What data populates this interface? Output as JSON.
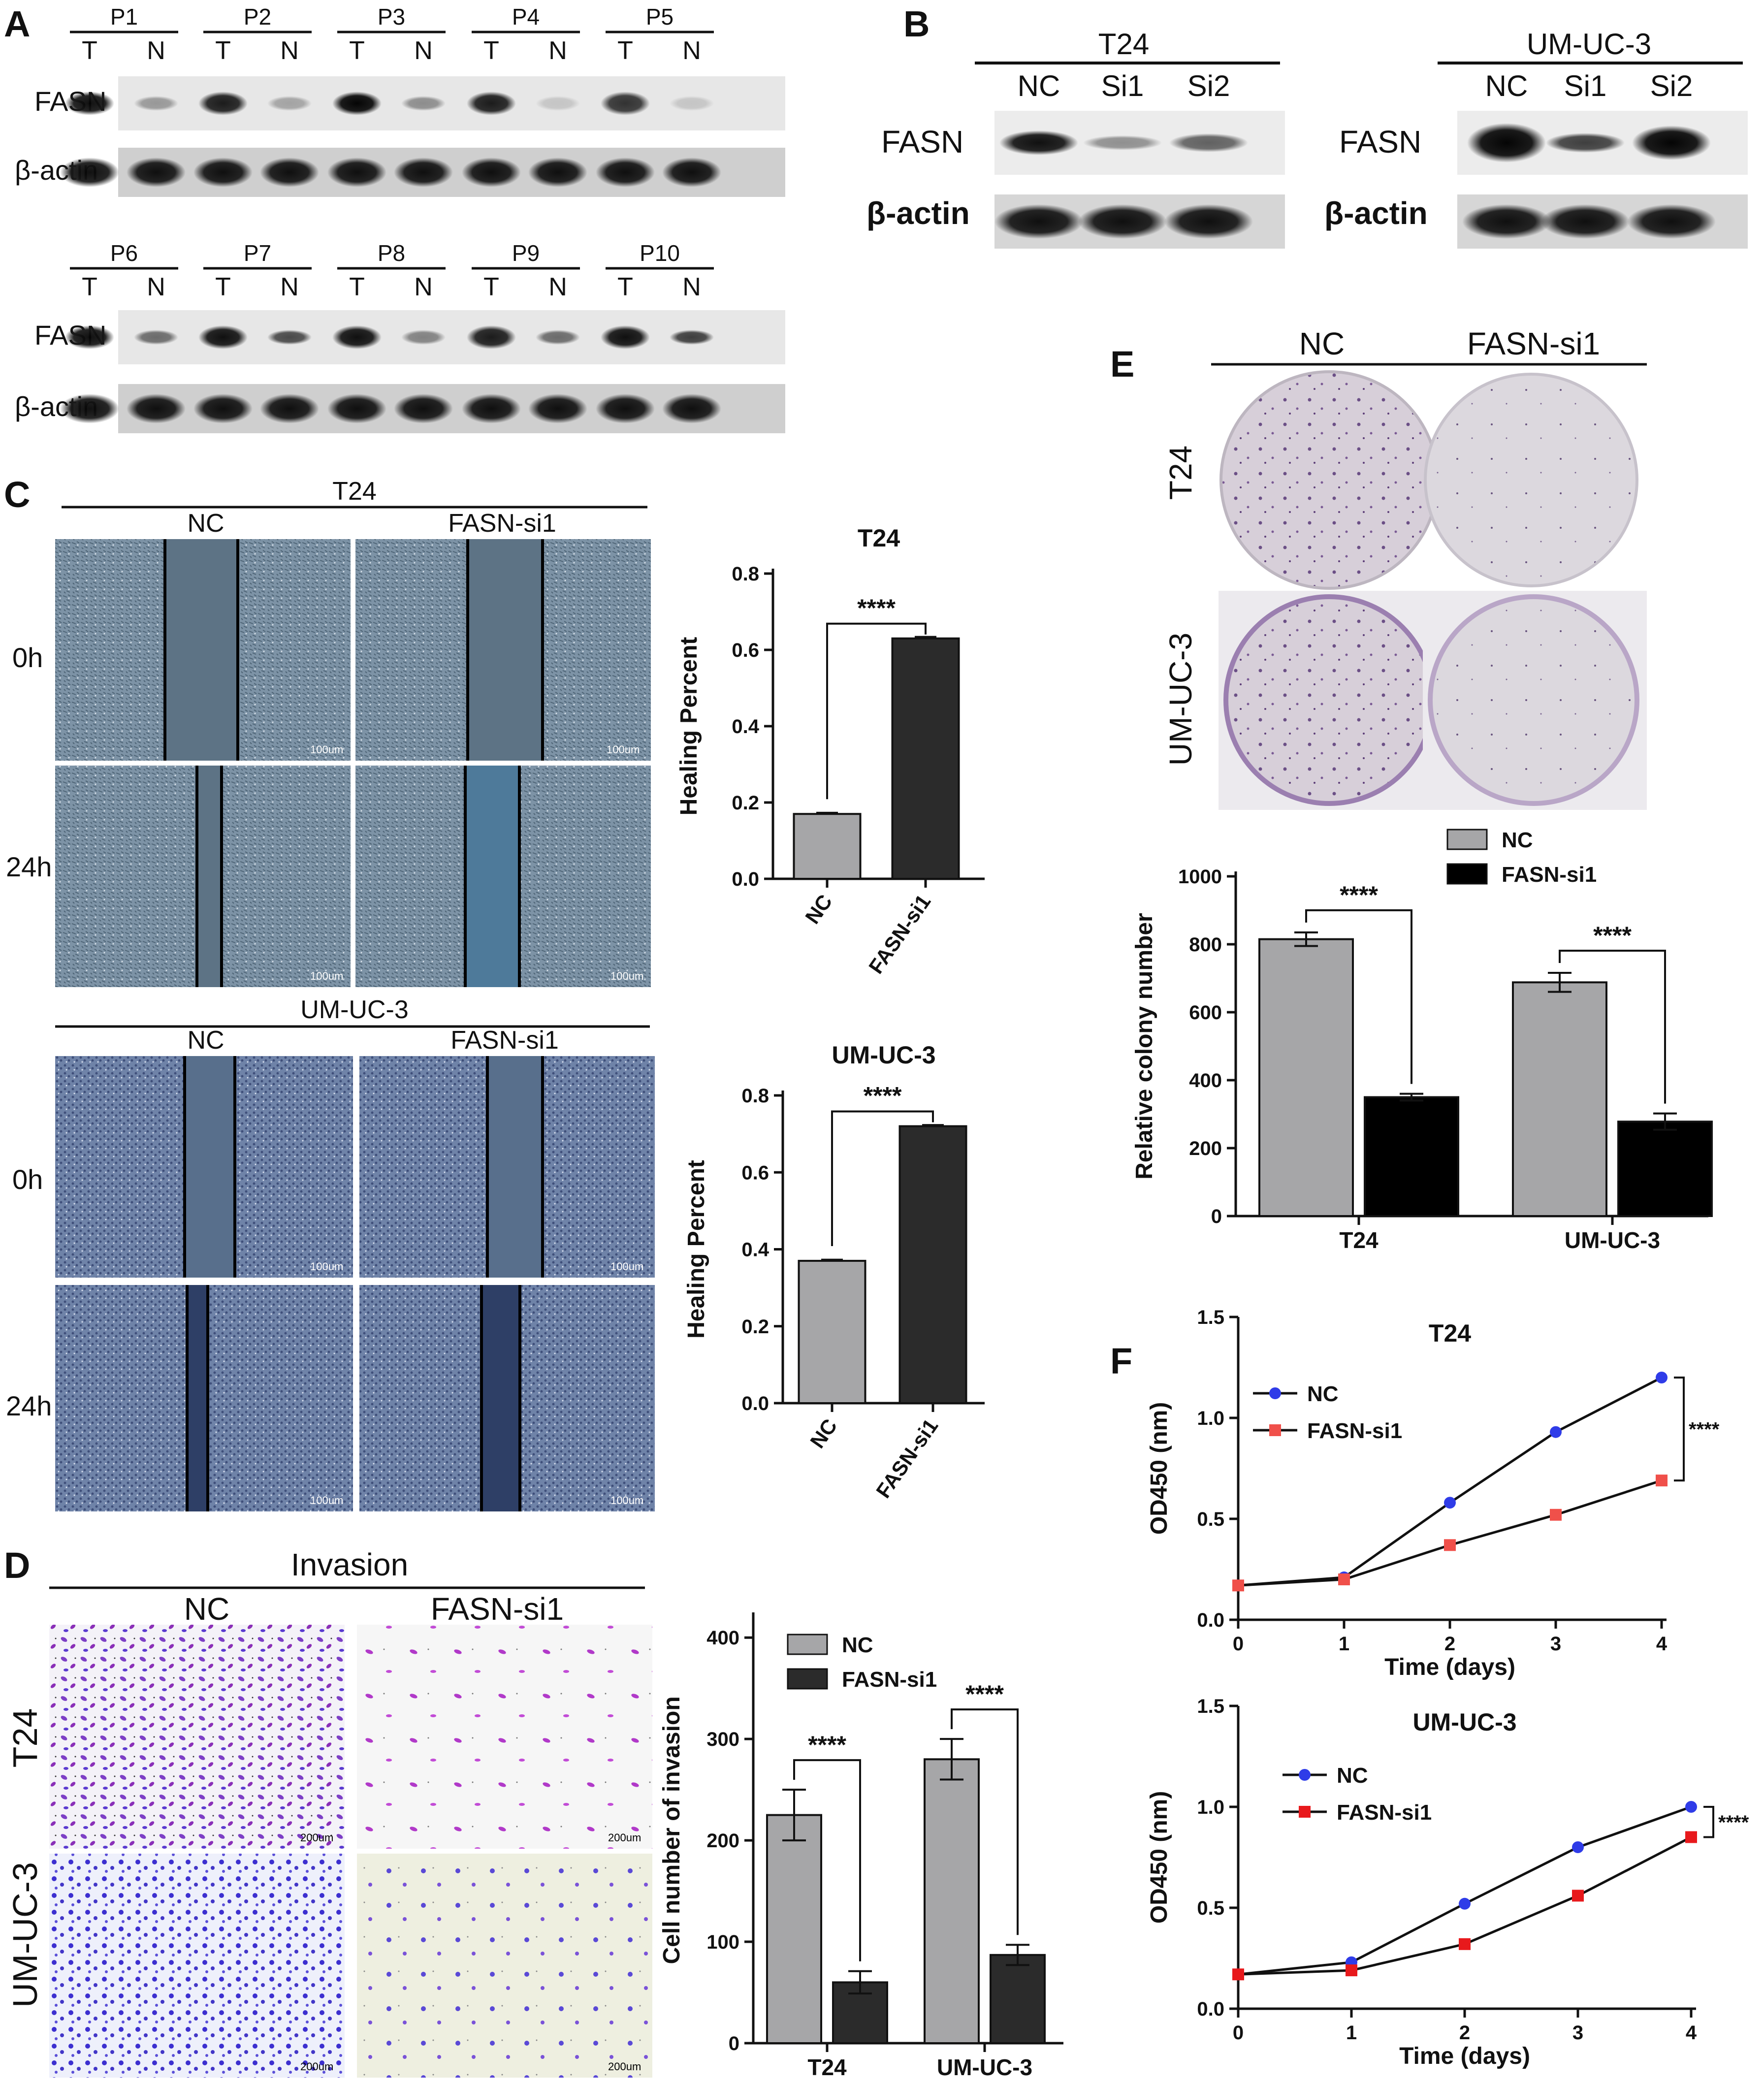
{
  "panels": {
    "a": "A",
    "b": "B",
    "c": "C",
    "d": "D",
    "e": "E",
    "f": "F"
  },
  "blots": {
    "fasn": "FASN",
    "actin": "β-actin",
    "tumor": "T",
    "normal": "N",
    "patients_row1": [
      "P1",
      "P2",
      "P3",
      "P4",
      "P5"
    ],
    "patients_row2": [
      "P6",
      "P7",
      "P8",
      "P9",
      "P10"
    ],
    "t24": "T24",
    "umuc3": "UM-UC-3",
    "lanes": [
      "NC",
      "Si1",
      "Si2"
    ]
  },
  "wound": {
    "t24": "T24",
    "umuc3": "UM-UC-3",
    "nc": "NC",
    "si": "FASN-si1",
    "h0": "0h",
    "h24": "24h",
    "scale": "100um"
  },
  "invasion": {
    "title": "Invasion",
    "nc": "NC",
    "si": "FASN-si1",
    "t24": "T24",
    "umuc3": "UM-UC-3",
    "scale": "200um"
  },
  "colony": {
    "nc": "NC",
    "si": "FASN-si1",
    "t24": "T24",
    "umuc3": "UM-UC-3"
  },
  "colors": {
    "nc_bar": "#a6a6a8",
    "si_bar_dark": "#2b2b2b",
    "si_bar_black": "#000000",
    "line_nc": "#2f3ce8",
    "line_si": "#f0504a",
    "line_si_dark": "#e8191c"
  },
  "chart_data": [
    {
      "id": "healing_t24",
      "type": "bar",
      "title": "T24",
      "ylabel": "Healing Percent",
      "categories": [
        "NC",
        "FASN-si1"
      ],
      "values": [
        0.17,
        0.63
      ],
      "errors": [
        0.003,
        0.004
      ],
      "ylim": [
        0,
        0.8
      ],
      "yticks": [
        "0.0",
        "0.2",
        "0.4",
        "0.6",
        "0.8"
      ],
      "significance": "****"
    },
    {
      "id": "healing_umuc3",
      "type": "bar",
      "title": "UM-UC-3",
      "ylabel": "Healing Percent",
      "categories": [
        "NC",
        "FASN-si1"
      ],
      "values": [
        0.37,
        0.72
      ],
      "errors": [
        0.003,
        0.003
      ],
      "ylim": [
        0,
        0.8
      ],
      "yticks": [
        "0.0",
        "0.2",
        "0.4",
        "0.6",
        "0.8"
      ],
      "significance": "****"
    },
    {
      "id": "invasion",
      "type": "bar",
      "title": "",
      "ylabel": "Cell number of invasion",
      "categories": [
        "T24",
        "UM-UC-3"
      ],
      "series": [
        {
          "name": "NC",
          "values": [
            225,
            280
          ],
          "errors": [
            25,
            20
          ]
        },
        {
          "name": "FASN-si1",
          "values": [
            60,
            87
          ],
          "errors": [
            11,
            10
          ]
        }
      ],
      "ylim": [
        0,
        420
      ],
      "yticks": [
        "0",
        "100",
        "200",
        "300",
        "400"
      ],
      "significance": [
        "****",
        "****"
      ],
      "legend": "top-right"
    },
    {
      "id": "colony",
      "type": "bar",
      "title": "",
      "ylabel": "Relative colony number",
      "categories": [
        "T24",
        "UM-UC-3"
      ],
      "series": [
        {
          "name": "NC",
          "values": [
            815,
            688
          ],
          "errors": [
            20,
            28
          ]
        },
        {
          "name": "FASN-si1",
          "values": [
            350,
            278
          ],
          "errors": [
            10,
            24
          ]
        }
      ],
      "ylim": [
        0,
        1000
      ],
      "yticks": [
        "0",
        "200",
        "400",
        "600",
        "800",
        "1000"
      ],
      "significance": [
        "****",
        "****"
      ],
      "legend": "top-right"
    },
    {
      "id": "od_t24",
      "type": "line",
      "title": "T24",
      "xlabel": "Time (days)",
      "ylabel": "OD450 (nm)",
      "x": [
        0,
        1,
        2,
        3,
        4
      ],
      "series": [
        {
          "name": "NC",
          "values": [
            0.17,
            0.21,
            0.58,
            0.93,
            1.2
          ]
        },
        {
          "name": "FASN-si1",
          "values": [
            0.17,
            0.2,
            0.37,
            0.52,
            0.69
          ]
        }
      ],
      "ylim": [
        0,
        1.5
      ],
      "xticks": [
        "0",
        "1",
        "2",
        "3",
        "4"
      ],
      "yticks": [
        "0.0",
        "0.5",
        "1.0",
        "1.5"
      ],
      "significance": "****",
      "legend": "top-left"
    },
    {
      "id": "od_umuc3",
      "type": "line",
      "title": "UM-UC-3",
      "xlabel": "Time (days)",
      "ylabel": "OD450 (nm)",
      "x": [
        0,
        1,
        2,
        3,
        4
      ],
      "series": [
        {
          "name": "NC",
          "values": [
            0.17,
            0.23,
            0.52,
            0.8,
            1.0
          ]
        },
        {
          "name": "FASN-si1",
          "values": [
            0.17,
            0.19,
            0.32,
            0.56,
            0.85
          ]
        }
      ],
      "ylim": [
        0,
        1.5
      ],
      "xticks": [
        "0",
        "1",
        "2",
        "3",
        "4"
      ],
      "yticks": [
        "0.0",
        "0.5",
        "1.0",
        "1.5"
      ],
      "significance": "****",
      "legend": "top-left"
    }
  ]
}
